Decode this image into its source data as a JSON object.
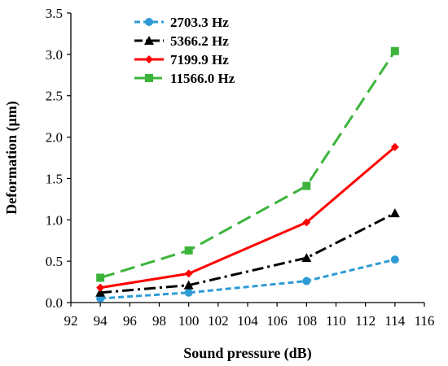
{
  "chart_data": {
    "type": "line",
    "title": "",
    "xlabel": "Sound pressure (dB)",
    "ylabel": "Deformation (μm)",
    "xlim": [
      92,
      116
    ],
    "ylim": [
      0.0,
      3.5
    ],
    "x_ticks": [
      "92",
      "94",
      "96",
      "98",
      "100",
      "102",
      "104",
      "106",
      "108",
      "110",
      "112",
      "114",
      "116"
    ],
    "y_ticks": [
      "0.0",
      "0.5",
      "1.0",
      "1.5",
      "2.0",
      "2.5",
      "3.0",
      "3.5"
    ],
    "grid": false,
    "legend_position": "top-left",
    "x": [
      94,
      100,
      108,
      114
    ],
    "series": [
      {
        "name": "2703.3 Hz",
        "values": [
          0.05,
          0.12,
          0.26,
          0.52
        ],
        "color": "#2e9bd6",
        "marker": "circle",
        "line_style": "short-dash"
      },
      {
        "name": "5366.2 Hz",
        "values": [
          0.12,
          0.21,
          0.54,
          1.08
        ],
        "color": "#000000",
        "marker": "triangle",
        "line_style": "dash-dot"
      },
      {
        "name": "7199.9 Hz",
        "values": [
          0.18,
          0.35,
          0.97,
          1.88
        ],
        "color": "#ff0000",
        "marker": "diamond",
        "line_style": "solid"
      },
      {
        "name": "11566.0 Hz",
        "values": [
          0.3,
          0.63,
          1.41,
          3.04
        ],
        "color": "#3cb43c",
        "marker": "square",
        "line_style": "long-dash"
      }
    ]
  }
}
